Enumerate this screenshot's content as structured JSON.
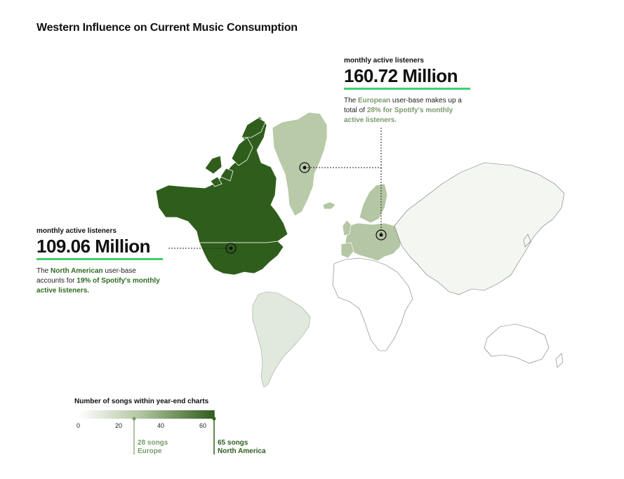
{
  "title": "Western Influence on Current Music Consumption",
  "callouts": {
    "europe": {
      "kicker": "monthly active listeners",
      "value": "160.72 Million",
      "text_before": "The ",
      "region": "European",
      "text_middle": " user-base makes up a total of ",
      "highlight": "28% for Spotify's monthly active listeners."
    },
    "north_america": {
      "kicker": "monthly active listeners",
      "value": "109.06 Million",
      "text_before": "The ",
      "region": "North American",
      "text_middle": " user-base accounts for ",
      "highlight": "19% of Spotify's monthly active listeners."
    }
  },
  "legend": {
    "title": "Number of songs within year-end charts",
    "ticks": [
      "0",
      "20",
      "40",
      "60"
    ],
    "range": [
      0,
      65
    ],
    "markers": [
      {
        "value": 28,
        "count_label": "28 songs",
        "region_label": "Europe"
      },
      {
        "value": 65,
        "count_label": "65 songs",
        "region_label": "North America"
      }
    ]
  },
  "colors": {
    "north_america": "#2f5e1c",
    "greenland": "#b8caa8",
    "europe": "#b4c6a3",
    "south_america": "#e1e9dc",
    "asia": "#f3f6f1",
    "other": "#ffffff",
    "accent_rule": "#3ecf6e"
  }
}
